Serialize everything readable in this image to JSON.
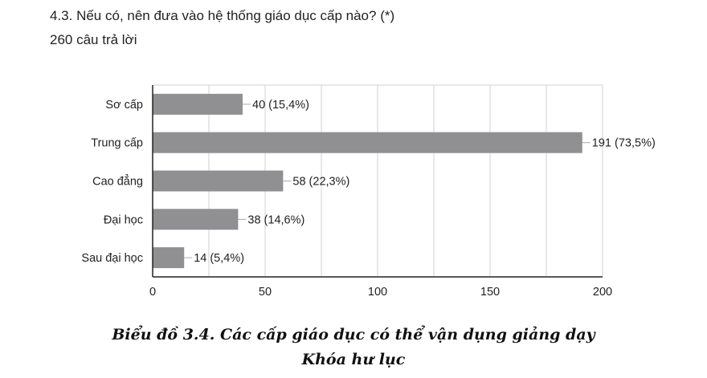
{
  "question": "4.3. Nếu có, nên đưa vào hệ thống giáo dục cấp nào? (*)",
  "responses": "260 câu trả lời",
  "caption_line1": "Biểu đồ 3.4. Các cấp giáo dục có thể vận dụng giảng dạy",
  "caption_line2": "Khóa hư lục",
  "chart_data": {
    "type": "bar",
    "orientation": "horizontal",
    "categories": [
      "Sơ cấp",
      "Trung cấp",
      "Cao đẳng",
      "Đại học",
      "Sau đại học"
    ],
    "values": [
      40,
      191,
      58,
      38,
      14
    ],
    "data_labels": [
      "40 (15,4%)",
      "191 (73,5%)",
      "58 (22,3%)",
      "38 (14,6%)",
      "14 (5,4%)"
    ],
    "xlim": [
      0,
      200
    ],
    "xticks": [
      0,
      50,
      100,
      150,
      200
    ],
    "grid_step": 25,
    "grid": true,
    "bar_color": "#909092",
    "grid_color": "#d0d0d0"
  }
}
